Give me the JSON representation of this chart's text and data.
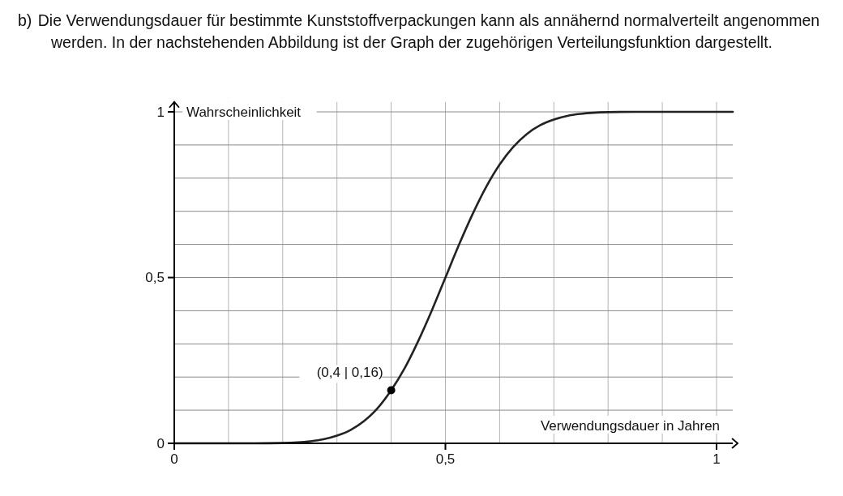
{
  "chart_data": {
    "type": "line",
    "title": "b)\tDie Verwendungsdauer für bestimmte Kunststoffverpackungen kann als annähernd normalverteilt angenommen werden. In der nachstehenden Abbildung ist der Graph der zugehörigen Verteilungsfunktion dargestellt.",
    "xlabel": "Verwendungsdauer in Jahren",
    "ylabel": "Wahrscheinlichkeit",
    "xlim": [
      0,
      1.03
    ],
    "ylim": [
      0,
      1.03
    ],
    "xticks": [
      0,
      {
        "value": 0.1,
        "label": null
      },
      {
        "value": 0.2,
        "label": null
      },
      {
        "value": 0.3,
        "label": null
      },
      {
        "value": 0.4,
        "label": null
      },
      {
        "value": 0.5,
        "label": "0,5"
      },
      {
        "value": 0.6,
        "label": null
      },
      {
        "value": 0.7,
        "label": null
      },
      {
        "value": 0.8,
        "label": null
      },
      {
        "value": 0.9,
        "label": null
      },
      1
    ],
    "yticks": [
      0,
      {
        "value": 0.1,
        "label": null
      },
      {
        "value": 0.2,
        "label": null
      },
      {
        "value": 0.3,
        "label": null
      },
      {
        "value": 0.4,
        "label": null
      },
      {
        "value": 0.5,
        "label": "0,5"
      },
      {
        "value": 0.6,
        "label": null
      },
      {
        "value": 0.7,
        "label": null
      },
      {
        "value": 0.8,
        "label": null
      },
      {
        "value": 0.9,
        "label": null
      },
      1
    ],
    "grid": true,
    "series": [
      {
        "color": "#222222",
        "x": [
          0,
          0.15,
          0.2,
          0.25,
          0.275,
          0.3,
          0.325,
          0.35,
          0.375,
          0.4,
          0.425,
          0.45,
          0.475,
          0.5,
          0.525,
          0.55,
          0.575,
          0.6,
          0.625,
          0.65,
          0.675,
          0.7,
          0.725,
          0.75,
          0.8,
          0.85,
          1.03
        ],
        "values": [
          0,
          0,
          0.001,
          0.006,
          0.012,
          0.023,
          0.04,
          0.067,
          0.106,
          0.16,
          0.227,
          0.309,
          0.401,
          0.5,
          0.599,
          0.691,
          0.773,
          0.841,
          0.894,
          0.933,
          0.96,
          0.977,
          0.988,
          0.994,
          0.999,
          1,
          1
        ]
      },
      {
        "type": "scatter",
        "color": "#000000",
        "x": [
          0.4
        ],
        "values": [
          0.16
        ]
      }
    ],
    "annotations": [
      {
        "text": "(0,4 | 0,16)",
        "x": 0.4,
        "y": 0.16
      }
    ]
  }
}
